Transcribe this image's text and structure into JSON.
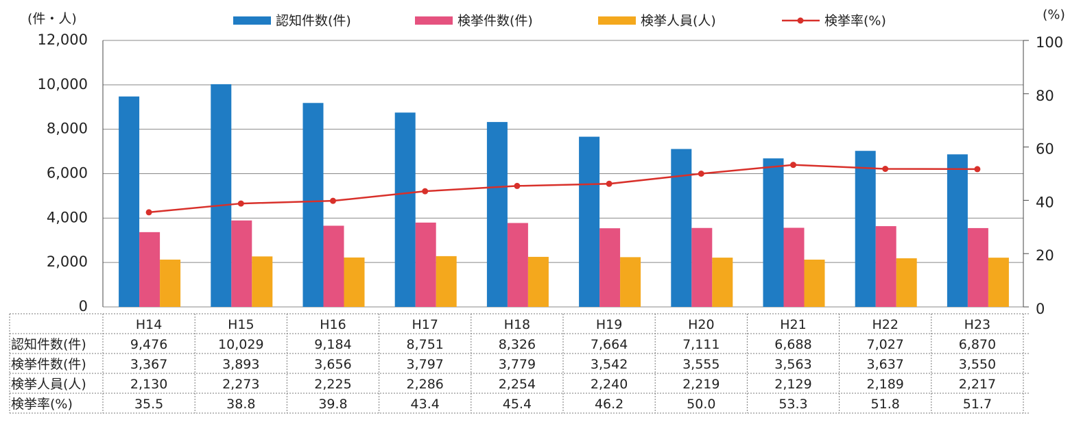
{
  "chart_data": {
    "type": "bar",
    "y_unit_label": "(件・人)",
    "y2_unit_label": "(%)",
    "categories": [
      "H14",
      "H15",
      "H16",
      "H17",
      "H18",
      "H19",
      "H20",
      "H21",
      "H22",
      "H23"
    ],
    "series": [
      {
        "name": "認知件数(件)",
        "type": "bar",
        "color": "#1f7cc4",
        "values": [
          9476,
          10029,
          9184,
          8751,
          8326,
          7664,
          7111,
          6688,
          7027,
          6870
        ],
        "value_labels": [
          "9,476",
          "10,029",
          "9,184",
          "8,751",
          "8,326",
          "7,664",
          "7,111",
          "6,688",
          "7,027",
          "6,870"
        ]
      },
      {
        "name": "検挙件数(件)",
        "type": "bar",
        "color": "#e5527f",
        "values": [
          3367,
          3893,
          3656,
          3797,
          3779,
          3542,
          3555,
          3563,
          3637,
          3550
        ],
        "value_labels": [
          "3,367",
          "3,893",
          "3,656",
          "3,797",
          "3,779",
          "3,542",
          "3,555",
          "3,563",
          "3,637",
          "3,550"
        ]
      },
      {
        "name": "検挙人員(人)",
        "type": "bar",
        "color": "#f4a81d",
        "values": [
          2130,
          2273,
          2225,
          2286,
          2254,
          2240,
          2219,
          2129,
          2189,
          2217
        ],
        "value_labels": [
          "2,130",
          "2,273",
          "2,225",
          "2,286",
          "2,254",
          "2,240",
          "2,219",
          "2,129",
          "2,189",
          "2,217"
        ]
      },
      {
        "name": "検挙率(%)",
        "type": "line",
        "axis": "y2",
        "color": "#d8302a",
        "values": [
          35.5,
          38.8,
          39.8,
          43.4,
          45.4,
          46.2,
          50.0,
          53.3,
          51.8,
          51.7
        ],
        "value_labels": [
          "35.5",
          "38.8",
          "39.8",
          "43.4",
          "45.4",
          "46.2",
          "50.0",
          "53.3",
          "51.8",
          "51.7"
        ]
      }
    ],
    "ylim": [
      0,
      12000
    ],
    "yticks": [
      0,
      {
        "value": 2000,
        "label": "2,000"
      },
      {
        "value": 4000,
        "label": "4,000"
      },
      {
        "value": 6000,
        "label": "6,000"
      },
      {
        "value": 8000,
        "label": "8,000"
      },
      {
        "value": 10000,
        "label": "10,000"
      },
      {
        "value": 12000,
        "label": "12,000"
      }
    ],
    "y2lim": [
      0,
      100
    ],
    "y2ticks": [
      0,
      20,
      40,
      60,
      80,
      100
    ],
    "grid": true,
    "legend": "top"
  }
}
